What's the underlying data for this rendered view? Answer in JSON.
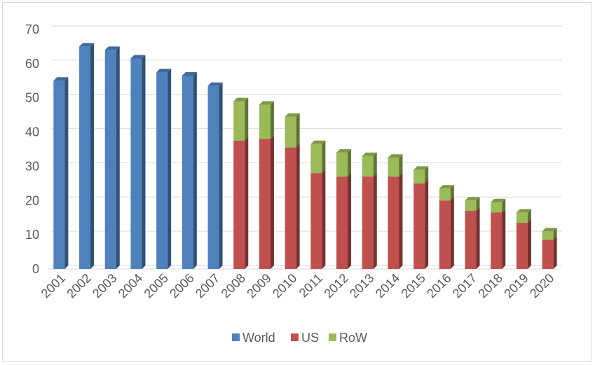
{
  "chart_data": {
    "type": "bar",
    "stacked": true,
    "three_d": true,
    "title": "",
    "xlabel": "",
    "ylabel": "",
    "ylim": [
      0,
      70
    ],
    "yticks": [
      0,
      10,
      20,
      30,
      40,
      50,
      60,
      70
    ],
    "grid": true,
    "legend_position": "bottom",
    "categories": [
      "2001",
      "2002",
      "2003",
      "2004",
      "2005",
      "2006",
      "2007",
      "2008",
      "2009",
      "2010",
      "2011",
      "2012",
      "2013",
      "2014",
      "2015",
      "2016",
      "2017",
      "2018",
      "2019",
      "2020"
    ],
    "series": [
      {
        "name": "World",
        "color": "#4f81bd",
        "values": [
          55,
          65,
          64,
          61.5,
          57.5,
          56.5,
          53.5,
          null,
          null,
          null,
          null,
          null,
          null,
          null,
          null,
          null,
          null,
          null,
          null,
          null
        ]
      },
      {
        "name": "US",
        "color": "#c0504d",
        "values": [
          null,
          null,
          null,
          null,
          null,
          null,
          null,
          37.5,
          38,
          35.5,
          28,
          27,
          27,
          27,
          25,
          20,
          17,
          16.5,
          13.5,
          8.5
        ]
      },
      {
        "name": "RoW",
        "color": "#9bbb59",
        "values": [
          null,
          null,
          null,
          null,
          null,
          null,
          null,
          11.5,
          10,
          9,
          8.5,
          7,
          6,
          5.5,
          4,
          3.5,
          3,
          3,
          3,
          2.5
        ]
      }
    ]
  }
}
